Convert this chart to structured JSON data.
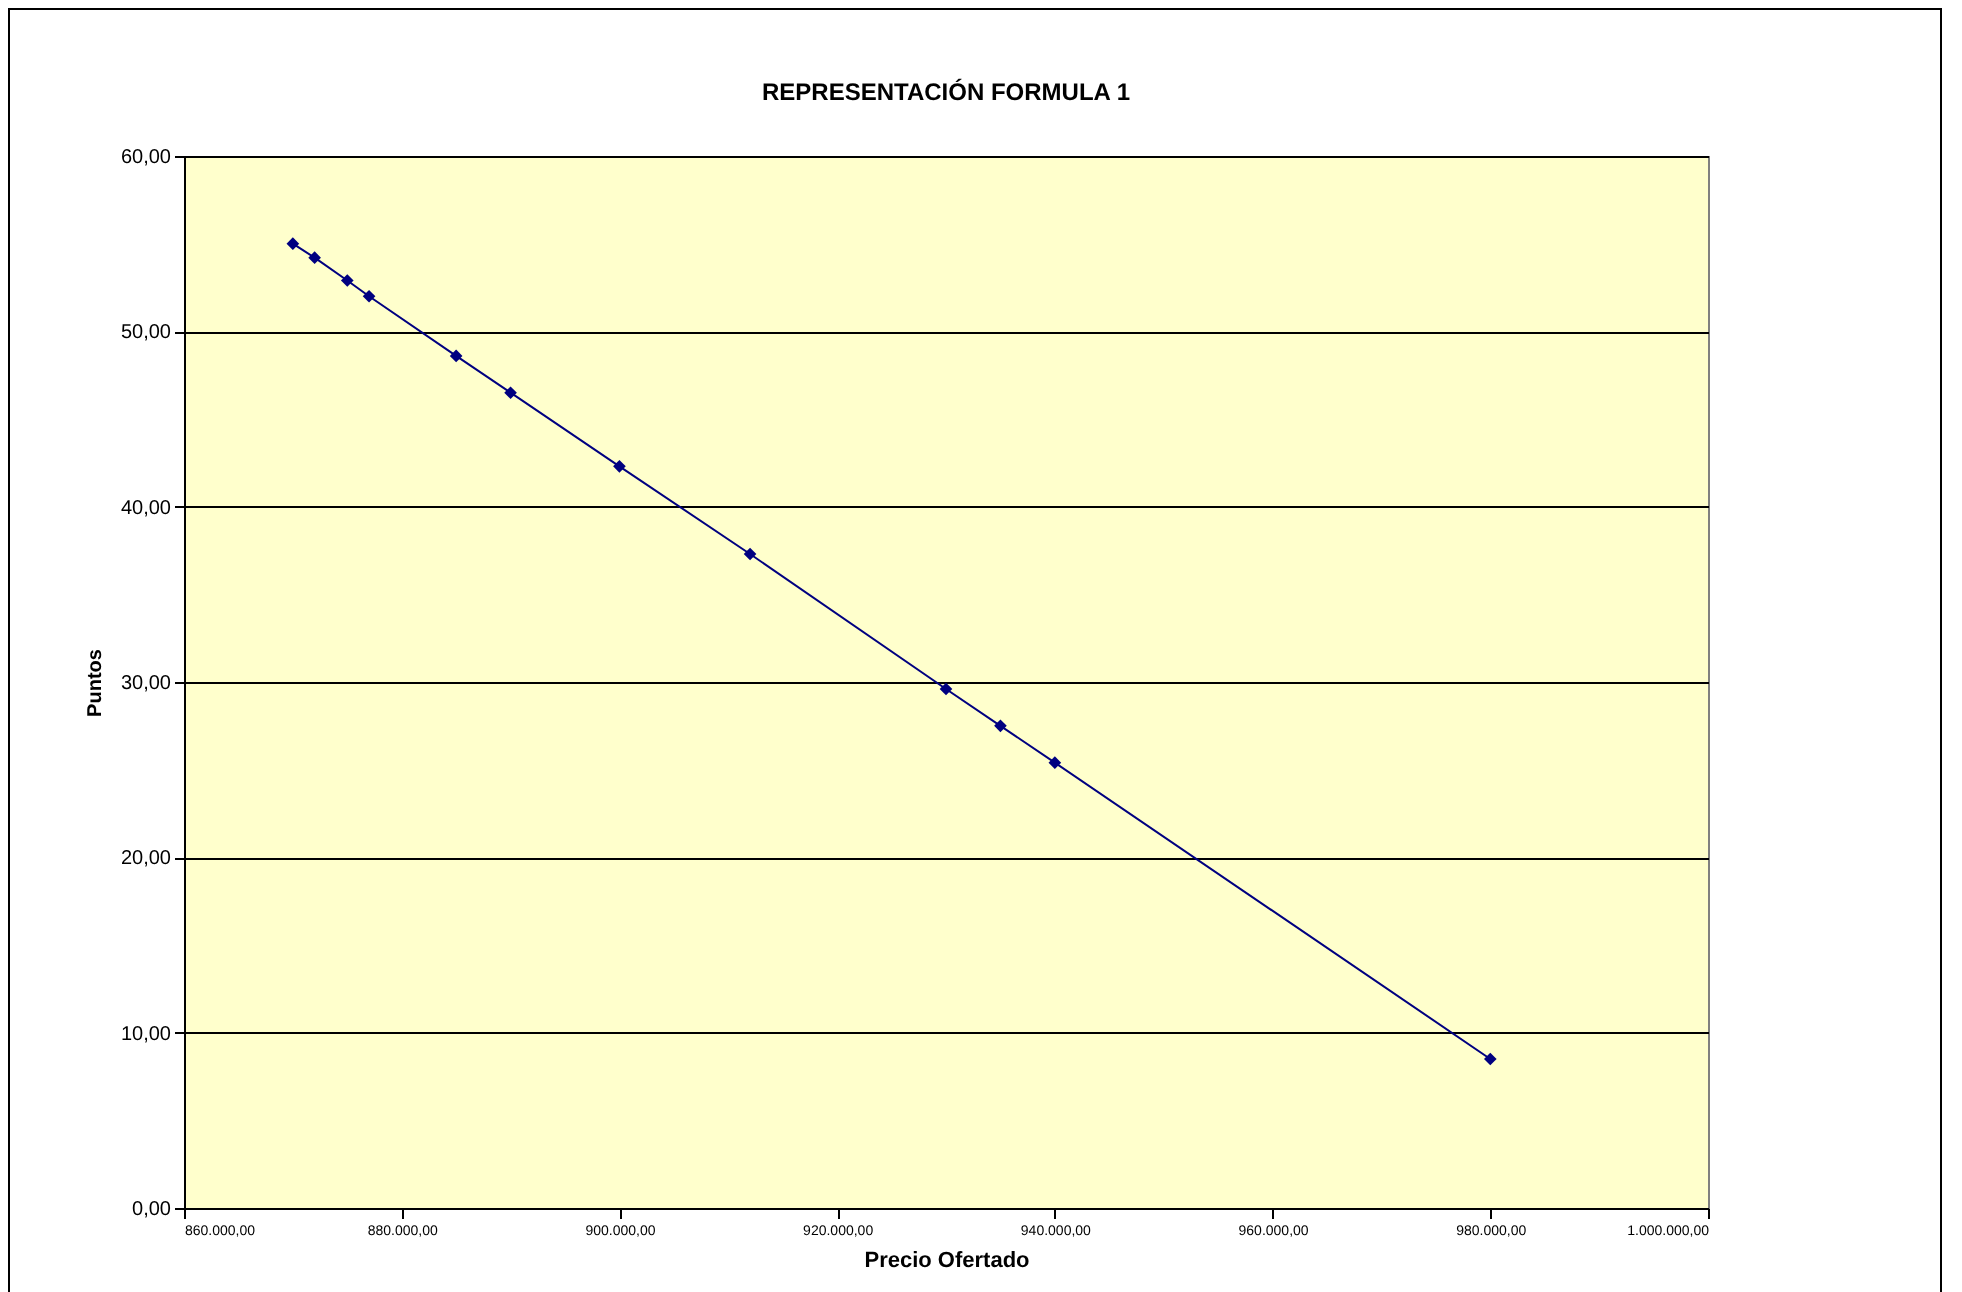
{
  "chart_data": {
    "type": "line",
    "title": "REPRESENTACIÓN FORMULA 1",
    "xlabel": "Precio Ofertado",
    "ylabel": "Puntos",
    "x": [
      870000,
      872000,
      875000,
      877000,
      885000,
      890000,
      900000,
      912000,
      930000,
      935000,
      940000,
      980000
    ],
    "series": [
      {
        "color": "#000080",
        "values": [
          55.0,
          54.2,
          52.9,
          52.0,
          48.6,
          46.5,
          42.3,
          37.3,
          29.6,
          27.5,
          25.4,
          8.5
        ]
      }
    ],
    "xlim": [
      860000,
      1000000
    ],
    "xticks": [
      {
        "value": 860000,
        "label": "860.000,00"
      },
      {
        "value": 880000,
        "label": "880.000,00"
      },
      {
        "value": 900000,
        "label": "900.000,00"
      },
      {
        "value": 920000,
        "label": "920.000,00"
      },
      {
        "value": 940000,
        "label": "940.000,00"
      },
      {
        "value": 960000,
        "label": "960.000,00"
      },
      {
        "value": 980000,
        "label": "980.000,00"
      },
      {
        "value": 1000000,
        "label": "1.000.000,00"
      }
    ],
    "ylim": [
      0,
      60
    ],
    "yticks": [
      {
        "value": 0,
        "label": "0,00"
      },
      {
        "value": 10,
        "label": "10,00"
      },
      {
        "value": 20,
        "label": "20,00"
      },
      {
        "value": 30,
        "label": "30,00"
      },
      {
        "value": 40,
        "label": "40,00"
      },
      {
        "value": 50,
        "label": "50,00"
      },
      {
        "value": 60,
        "label": "60,00"
      }
    ],
    "grid": "y",
    "marker": "diamond",
    "line_style": "solid"
  }
}
